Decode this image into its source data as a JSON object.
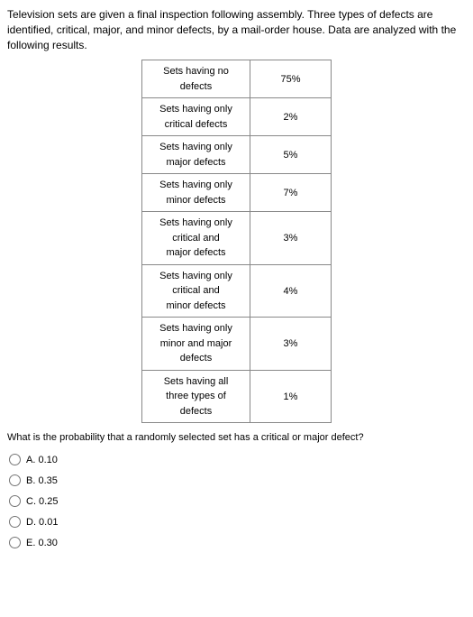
{
  "prompt": "Television sets are given a final inspection following assembly. Three types of defects are identified, critical, major, and minor defects, by a mail-order house. Data are analyzed with the following results.",
  "table": {
    "rows": [
      {
        "label_lines": [
          "Sets having no",
          "defects"
        ],
        "value": "75%"
      },
      {
        "label_lines": [
          "Sets having only",
          "critical defects"
        ],
        "value": "2%"
      },
      {
        "label_lines": [
          "Sets having only",
          "major defects"
        ],
        "value": "5%"
      },
      {
        "label_lines": [
          "Sets having only",
          "minor defects"
        ],
        "value": "7%"
      },
      {
        "label_lines": [
          "Sets having only",
          "critical and",
          "major defects"
        ],
        "value": "3%"
      },
      {
        "label_lines": [
          "Sets having only",
          "critical and",
          "minor defects"
        ],
        "value": "4%"
      },
      {
        "label_lines": [
          "Sets having only",
          "minor and major",
          "defects"
        ],
        "value": "3%"
      },
      {
        "label_lines": [
          "Sets having all",
          "three types of",
          "defects"
        ],
        "value": "1%"
      }
    ]
  },
  "question": "What is the probability that a randomly selected set has a critical or major defect?",
  "options": {
    "a": "A. 0.10",
    "b": "B. 0.35",
    "c": "C. 0.25",
    "d": "D. 0.01",
    "e": "E. 0.30"
  }
}
